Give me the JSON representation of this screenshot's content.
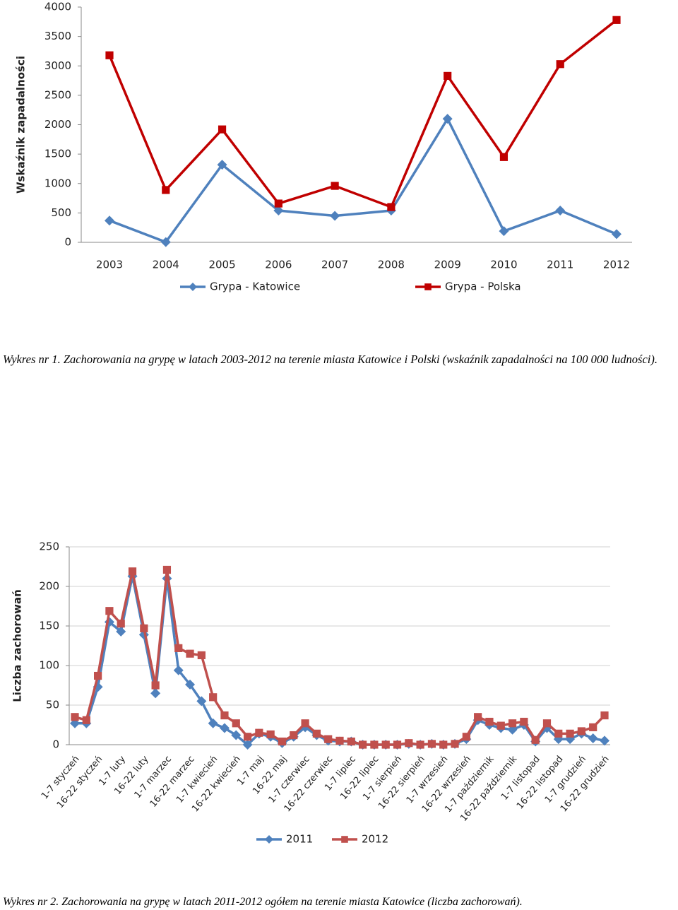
{
  "chart_data": [
    {
      "type": "line",
      "y_label": "Wskaźnik zapadalności",
      "categories": [
        "2003",
        "2004",
        "2005",
        "2006",
        "2007",
        "2008",
        "2009",
        "2010",
        "2011",
        "2012"
      ],
      "series": [
        {
          "name": "Grypa - Katowice",
          "color": "#4f81bd",
          "marker": "diamond",
          "values": [
            370,
            5,
            1320,
            540,
            450,
            540,
            2100,
            190,
            540,
            140
          ]
        },
        {
          "name": "Grypa - Polska",
          "color": "#c00000",
          "marker": "square",
          "values": [
            3180,
            890,
            1920,
            660,
            960,
            600,
            2830,
            1450,
            3030,
            3780
          ]
        }
      ],
      "ylim": [
        0,
        4000
      ],
      "yticks": [
        0,
        500,
        1000,
        1500,
        2000,
        2500,
        3000,
        3500,
        4000
      ],
      "grid": false,
      "legend": "bottom",
      "caption": "Wykres nr 1. Zachorowania na grypę w latach 2003-2012 na terenie miasta  Katowice i Polski (wskaźnik zapadalności na 100 000 ludności)."
    },
    {
      "type": "line",
      "y_label": "Liczba zachorowań",
      "categories": [
        "1-7 styczeń",
        null,
        "16-22 styczeń",
        null,
        "1-7 luty",
        null,
        "16-22 luty",
        null,
        "1-7 marzec",
        null,
        "16-22 marzec",
        null,
        "1-7 kwiecień",
        null,
        "16-22 kwiecień",
        null,
        "1-7 maj",
        null,
        "16-22 maj",
        null,
        "1-7 czerwiec",
        null,
        "16-22 czerwiec",
        null,
        "1-7 lipiec",
        null,
        "16-22 lipiec",
        null,
        "1-7 sierpień",
        null,
        "16-22 sierpień",
        null,
        "1-7 wrzesień",
        null,
        "16-22 wrzesień",
        null,
        "1-7 październik",
        null,
        "16-22 październik",
        null,
        "1-7 listopad",
        null,
        "16-22 listopad",
        null,
        "1-7 grudzień",
        null,
        "16-22 grudzień"
      ],
      "series": [
        {
          "name": "2011",
          "color": "#4f81bd",
          "marker": "diamond",
          "values": [
            27,
            27,
            73,
            155,
            143,
            213,
            139,
            65,
            210,
            94,
            76,
            55,
            27,
            21,
            12,
            0,
            14,
            10,
            2,
            10,
            22,
            12,
            5,
            4,
            4,
            0,
            0,
            0,
            0,
            1,
            0,
            1,
            0,
            1,
            7,
            31,
            25,
            21,
            19,
            25,
            4,
            21,
            7,
            7,
            14,
            8,
            5
          ]
        },
        {
          "name": "2012",
          "color": "#c0504d",
          "marker": "square",
          "values": [
            35,
            31,
            87,
            169,
            153,
            219,
            147,
            75,
            221,
            122,
            115,
            113,
            60,
            37,
            27,
            10,
            15,
            13,
            4,
            12,
            27,
            14,
            7,
            5,
            4,
            0,
            0,
            0,
            0,
            2,
            0,
            1,
            0,
            1,
            10,
            35,
            29,
            24,
            27,
            29,
            6,
            27,
            14,
            14,
            17,
            22,
            37
          ]
        }
      ],
      "ylim": [
        0,
        250
      ],
      "yticks": [
        0,
        50,
        100,
        150,
        200,
        250
      ],
      "grid": true,
      "legend": "bottom",
      "caption": "Wykres nr 2. Zachorowania na grypę w latach 2011-2012 ogółem na terenie miasta  Katowice (liczba zachorowań)."
    }
  ]
}
